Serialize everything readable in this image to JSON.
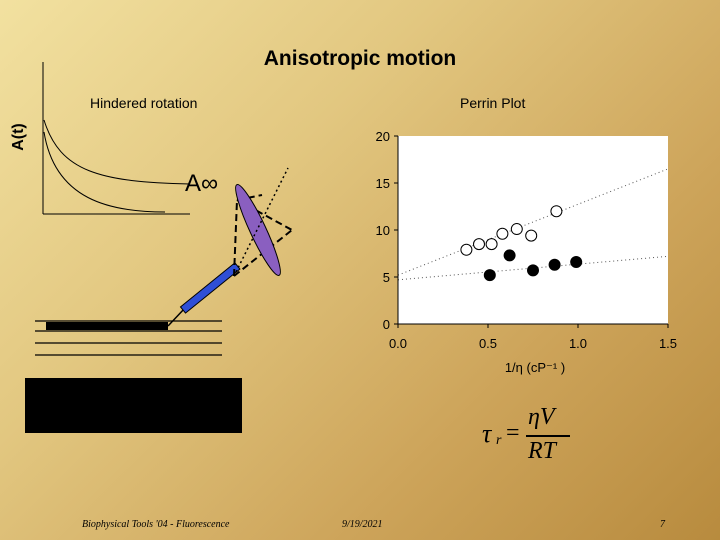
{
  "title": "Anisotropic motion",
  "labels": {
    "left_panel": "Hindered rotation",
    "right_panel": "Perrin Plot",
    "y_axis_left": "A(t)",
    "a_infinity": "A∞"
  },
  "formula": {
    "lhs": "τ",
    "lhs_sub": "r",
    "equals": "=",
    "numerator": "ηV",
    "denominator": "RT"
  },
  "footer": {
    "left": "Biophysical Tools '04 - Fluorescence",
    "date": "9/19/2021",
    "page": "7"
  },
  "chart_data": {
    "type": "scatter",
    "title": "Perrin Plot",
    "xlabel": "1/η (cP⁻¹ )",
    "ylabel": "",
    "xlim": [
      0,
      1.5
    ],
    "ylim": [
      0,
      20
    ],
    "x_ticks": [
      "0.0",
      "0.5",
      "1.0",
      "1.5"
    ],
    "y_ticks": [
      "0",
      "5",
      "10",
      "15",
      "20"
    ],
    "series": [
      {
        "marker": "open-circle",
        "color": "#ffffff",
        "points": [
          [
            0.38,
            7.9
          ],
          [
            0.45,
            8.5
          ],
          [
            0.52,
            8.5
          ],
          [
            0.58,
            9.6
          ],
          [
            0.66,
            10.1
          ],
          [
            0.74,
            9.4
          ],
          [
            0.88,
            12.0
          ]
        ],
        "trendline": [
          [
            0.0,
            5.2
          ],
          [
            1.5,
            16.5
          ]
        ]
      },
      {
        "marker": "filled-circle",
        "color": "#000000",
        "points": [
          [
            0.51,
            5.2
          ],
          [
            0.62,
            7.3
          ],
          [
            0.75,
            5.7
          ],
          [
            0.87,
            6.3
          ],
          [
            0.99,
            6.6
          ]
        ],
        "trendline": [
          [
            0.0,
            4.7
          ],
          [
            1.5,
            7.2
          ]
        ]
      }
    ]
  }
}
